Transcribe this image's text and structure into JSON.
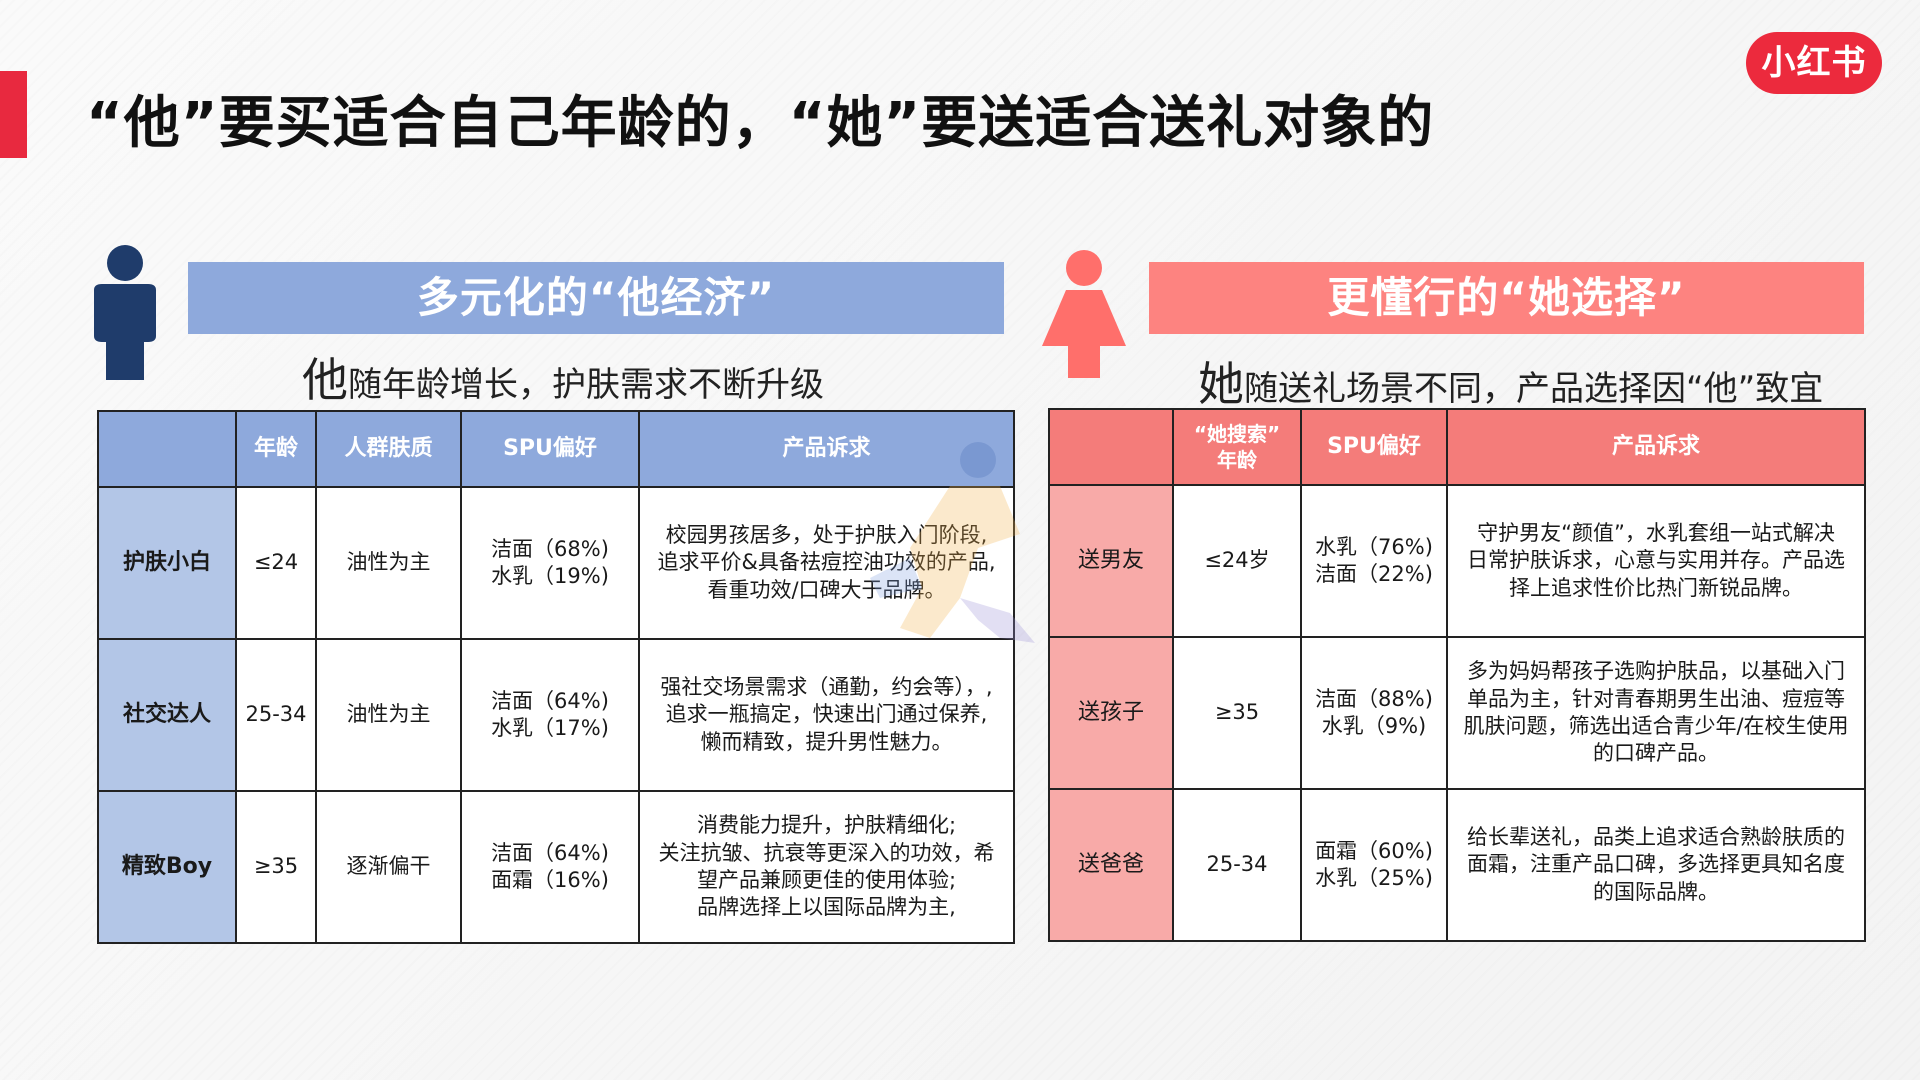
{
  "title": "“他”要买适合自己年龄的，“她”要送适合送礼对象的",
  "logo_text": "小红书",
  "colors": {
    "accent": "#e8293f",
    "male_blue": "#8ea9dc",
    "female_red": "#fd8380",
    "male_icon": "#1f3c6b",
    "female_icon": "#ff6f6b"
  },
  "male": {
    "banner": "多元化的“他经济”",
    "subtitle_lead": "他",
    "subtitle_rest": "随年龄增长，护肤需求不断升级",
    "headers": [
      "",
      "年龄",
      "人群肤质",
      "SPU偏好",
      "产品诉求"
    ],
    "rows": [
      {
        "group": "护肤小白",
        "age": "≤24",
        "skin": "油性为主",
        "spu": [
          "洁面（68%)",
          "水乳（19%)"
        ],
        "desc": [
          "校园男孩居多，处于护肤入门阶段,",
          "追求平价&具备祛痘控油功效的产品,",
          "看重功效/口碑大于品牌。"
        ]
      },
      {
        "group": "社交达人",
        "age": "25-34",
        "skin": "油性为主",
        "spu": [
          "洁面（64%)",
          "水乳（17%)"
        ],
        "desc": [
          "强社交场景需求（通勤，约会等），,",
          "追求一瓶搞定，快速出门通过保养,",
          "懒而精致，提升男性魅力。"
        ]
      },
      {
        "group": "精致Boy",
        "age": "≥35",
        "skin": "逐渐偏干",
        "spu": [
          "洁面（64%)",
          "面霜（16%)"
        ],
        "desc": [
          "消费能力提升，护肤精细化;",
          "关注抗皱、抗衰等更深入的功效，希",
          "望产品兼顾更佳的使用体验;",
          "品牌选择上以国际品牌为主,"
        ]
      }
    ]
  },
  "female": {
    "banner": "更懂行的“她选择”",
    "subtitle_lead": "她",
    "subtitle_rest": "随送礼场景不同，产品选择因“他”致宜",
    "headers": [
      "",
      "“她搜索”年龄",
      "SPU偏好",
      "产品诉求"
    ],
    "header_age_lines": [
      "“她搜索”",
      "年龄"
    ],
    "rows": [
      {
        "group": "送男友",
        "age": "≤24岁",
        "spu": [
          "水乳（76%)",
          "洁面（22%)"
        ],
        "desc": [
          "守护男友“颜值”，水乳套组一站式解决",
          "日常护肤诉求，心意与实用并存。产品选",
          "择上追求性价比热门新锐品牌。"
        ]
      },
      {
        "group": "送孩子",
        "age": "≥35",
        "spu": [
          "洁面（88%)",
          "水乳（9%)"
        ],
        "desc": [
          "多为妈妈帮孩子选购护肤品，以基础入门",
          "单品为主，针对青春期男生出油、痘痘等",
          "肌肤问题，筛选出适合青少年/在校生使用",
          "的口碑产品。"
        ]
      },
      {
        "group": "送爸爸",
        "age": "25-34",
        "spu": [
          "面霜（60%)",
          "水乳（25%)"
        ],
        "desc": [
          "给长辈送礼，品类上追求适合熟龄肤质的",
          "面霜，注重产品口碑，多选择更具知名度",
          "的国际品牌。"
        ]
      }
    ]
  }
}
